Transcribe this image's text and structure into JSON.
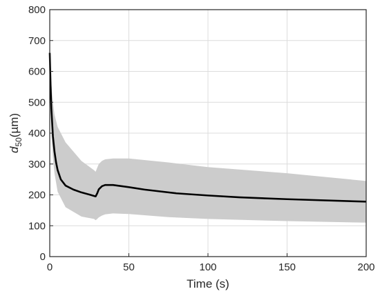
{
  "chart_data": {
    "type": "line",
    "xlabel": "Time (s)",
    "ylabel_main": "d",
    "ylabel_sub": "50",
    "ylabel_unit": "(µm)",
    "xlim": [
      0,
      200
    ],
    "ylim": [
      0,
      800
    ],
    "xticks": [
      0,
      50,
      100,
      150,
      200
    ],
    "yticks": [
      0,
      100,
      200,
      300,
      400,
      500,
      600,
      700,
      800
    ],
    "grid": true,
    "series": [
      {
        "kind": "line",
        "color": "#000000",
        "x": [
          0,
          0.5,
          1,
          2,
          3,
          4,
          5,
          7,
          10,
          15,
          20,
          25,
          29,
          30,
          31,
          33,
          35,
          40,
          50,
          60,
          80,
          100,
          120,
          150,
          200
        ],
        "y": [
          660,
          560,
          480,
          390,
          340,
          305,
          280,
          250,
          230,
          217,
          208,
          201,
          195,
          205,
          218,
          228,
          232,
          232,
          225,
          217,
          205,
          198,
          192,
          186,
          178
        ]
      }
    ],
    "band": {
      "kind": "band",
      "color": "#cccccc",
      "x": [
        0,
        0.5,
        1,
        2,
        3,
        5,
        10,
        20,
        28,
        29,
        30,
        31,
        33,
        35,
        40,
        50,
        75,
        100,
        150,
        200
      ],
      "upper": [
        660,
        600,
        560,
        500,
        460,
        420,
        370,
        310,
        280,
        275,
        288,
        300,
        310,
        315,
        318,
        318,
        305,
        290,
        270,
        245
      ],
      "lower": [
        660,
        480,
        400,
        320,
        270,
        210,
        160,
        130,
        122,
        118,
        122,
        127,
        133,
        137,
        140,
        138,
        128,
        122,
        115,
        110
      ]
    }
  }
}
